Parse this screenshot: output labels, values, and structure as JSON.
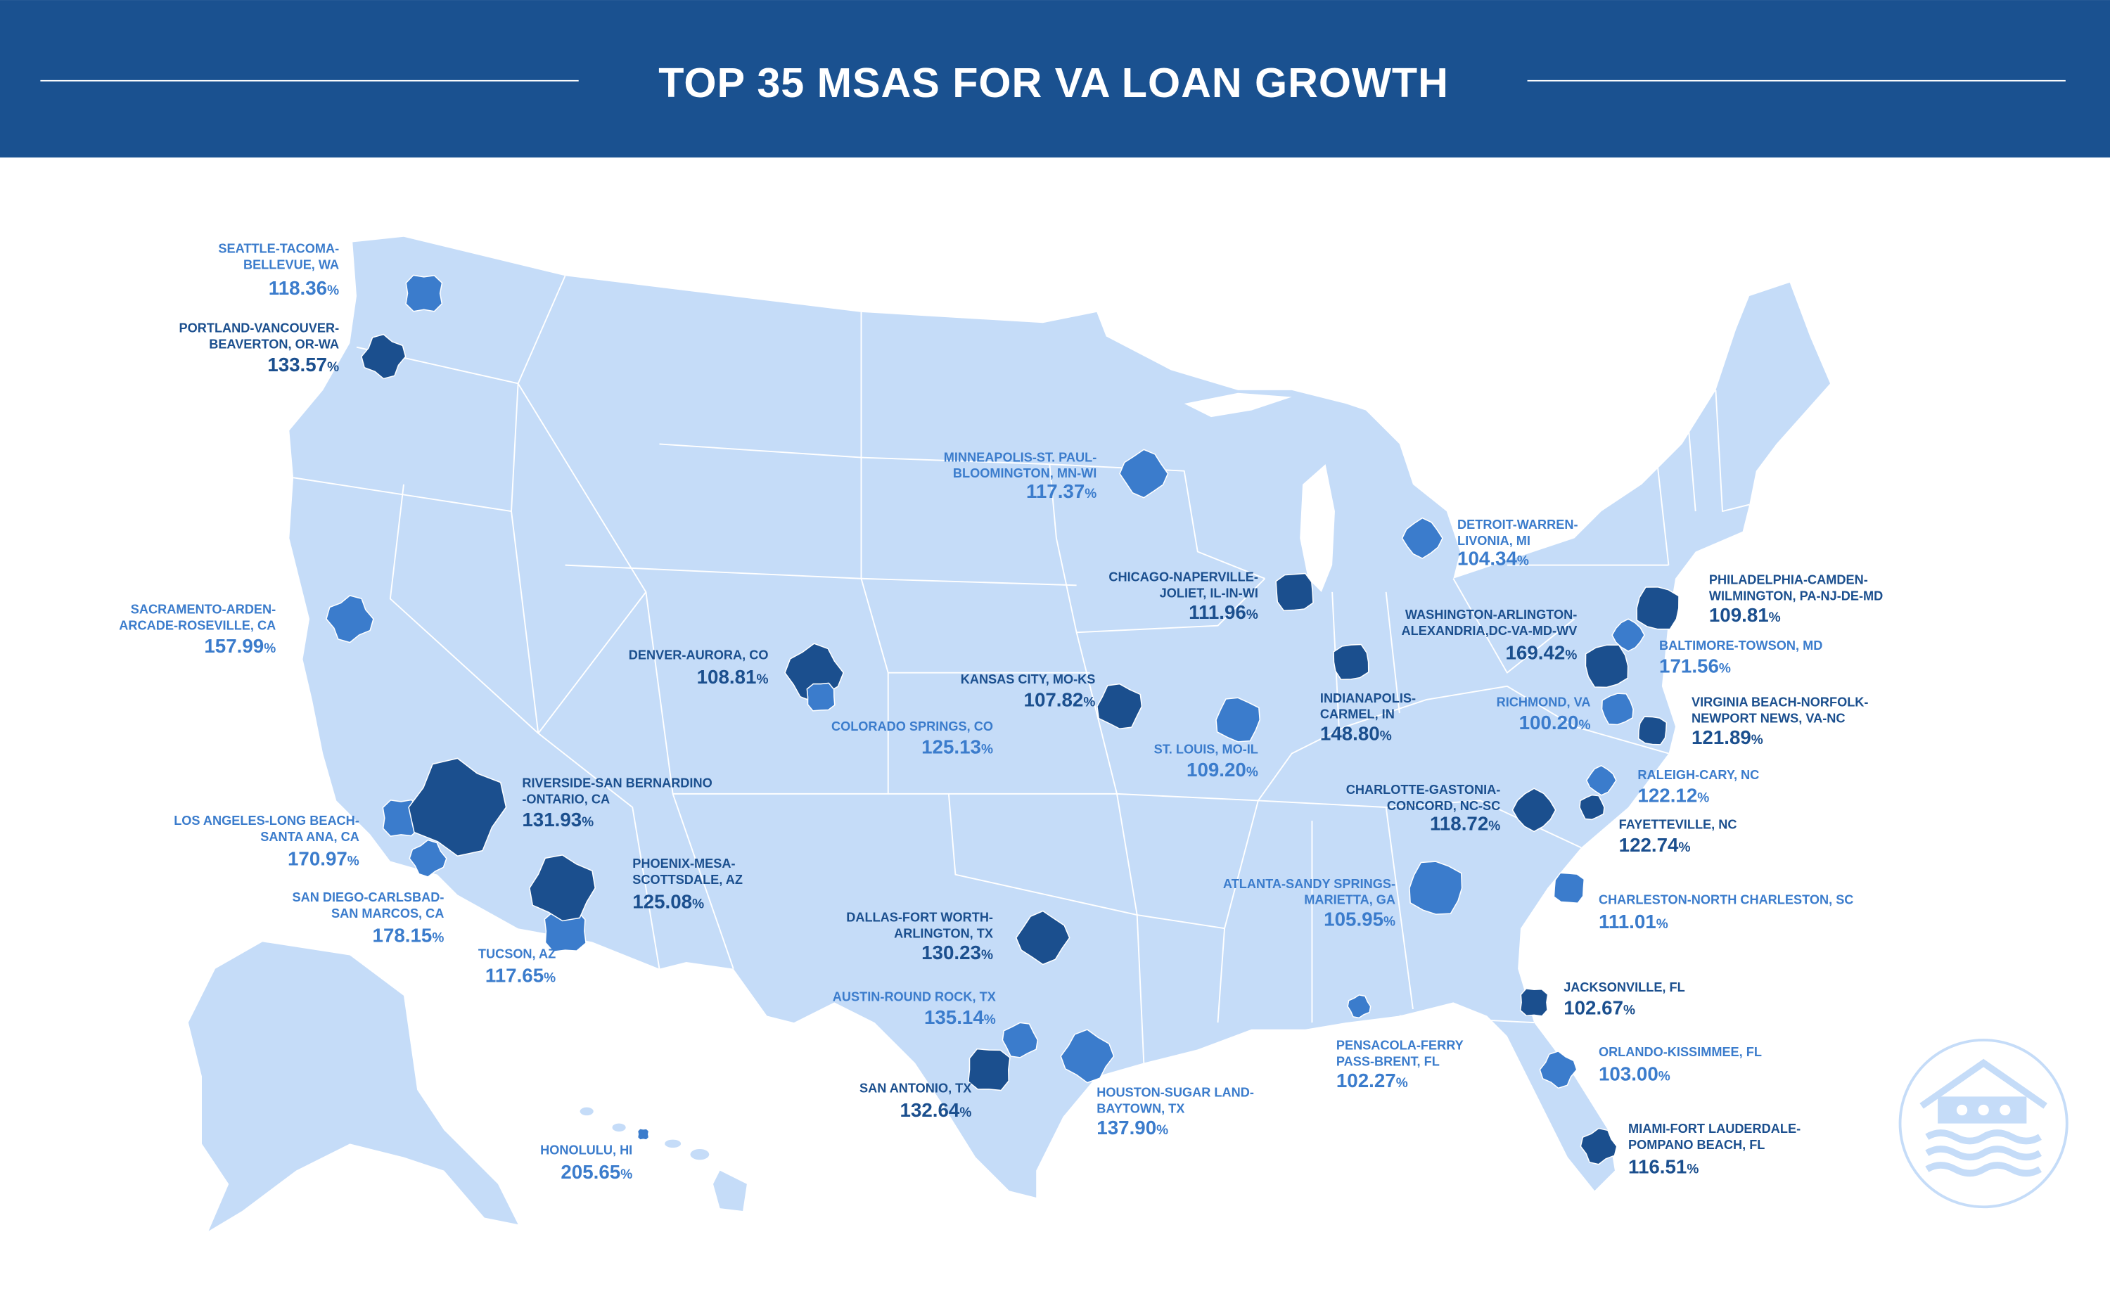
{
  "header": {
    "title": "TOP 35 MSAS FOR VA LOAN GROWTH"
  },
  "msas": [
    {
      "name_lines": [
        "SEATTLE-TACOMA-",
        "BELLEVUE, WA"
      ],
      "growth": "118.36%",
      "color": "#3b7ccc"
    },
    {
      "name_lines": [
        "PORTLAND-VANCOUVER-",
        "BEAVERTON, OR-WA"
      ],
      "growth": "133.57%",
      "color": "#1b4f8e"
    },
    {
      "name_lines": [
        "SACRAMENTO-ARDEN-",
        "ARCADE-ROSEVILLE, CA"
      ],
      "growth": "157.99%",
      "color": "#3b7ccc"
    },
    {
      "name_lines": [
        "LOS ANGELES-LONG BEACH-",
        "SANTA ANA, CA"
      ],
      "growth": "170.97%",
      "color": "#3b7ccc"
    },
    {
      "name_lines": [
        "RIVERSIDE-SAN BERNARDINO",
        "-ONTARIO, CA"
      ],
      "growth": "131.93%",
      "color": "#1b4f8e"
    },
    {
      "name_lines": [
        "SAN DIEGO-CARLSBAD-",
        "SAN MARCOS, CA"
      ],
      "growth": "178.15%",
      "color": "#3b7ccc"
    },
    {
      "name_lines": [
        "TUCSON, AZ"
      ],
      "growth": "117.65%",
      "color": "#3b7ccc"
    },
    {
      "name_lines": [
        "PHOENIX-MESA-",
        "SCOTTSDALE, AZ"
      ],
      "growth": "125.08%",
      "color": "#1b4f8e"
    },
    {
      "name_lines": [
        "DENVER-AURORA, CO"
      ],
      "growth": "108.81%",
      "color": "#1b4f8e"
    },
    {
      "name_lines": [
        "COLORADO SPRINGS, CO"
      ],
      "growth": "125.13%",
      "color": "#3b7ccc"
    },
    {
      "name_lines": [
        "KANSAS CITY, MO-KS"
      ],
      "growth": "107.82%",
      "color": "#1b4f8e"
    },
    {
      "name_lines": [
        "MINNEAPOLIS-ST. PAUL-",
        "BLOOMINGTON, MN-WI"
      ],
      "growth": "117.37%",
      "color": "#3b7ccc"
    },
    {
      "name_lines": [
        "CHICAGO-NAPERVILLE-",
        "JOLIET, IL-IN-WI"
      ],
      "growth": "111.96%",
      "color": "#1b4f8e"
    },
    {
      "name_lines": [
        "ST. LOUIS, MO-IL"
      ],
      "growth": "109.20%",
      "color": "#3b7ccc"
    },
    {
      "name_lines": [
        "DETROIT-WARREN-",
        "LIVONIA, MI"
      ],
      "growth": "104.34%",
      "color": "#3b7ccc"
    },
    {
      "name_lines": [
        "INDIANAPOLIS-",
        "CARMEL, IN"
      ],
      "growth": "148.80%",
      "color": "#1b4f8e"
    },
    {
      "name_lines": [
        "ATLANTA-SANDY SPRINGS-",
        "MARIETTA, GA"
      ],
      "growth": "105.95%",
      "color": "#3b7ccc"
    },
    {
      "name_lines": [
        "CHARLOTTE-GASTONIA-",
        "CONCORD, NC-SC"
      ],
      "growth": "118.72%",
      "color": "#1b4f8e"
    },
    {
      "name_lines": [
        "WASHINGTON-ARLINGTON-",
        "ALEXANDRIA,DC-VA-MD-WV"
      ],
      "growth": "169.42%",
      "color": "#1b4f8e"
    },
    {
      "name_lines": [
        "PHILADELPHIA-CAMDEN-",
        "WILMINGTON, PA-NJ-DE-MD"
      ],
      "growth": "109.81%",
      "color": "#1b4f8e"
    },
    {
      "name_lines": [
        "BALTIMORE-TOWSON, MD"
      ],
      "growth": "171.56%",
      "color": "#3b7ccc"
    },
    {
      "name_lines": [
        "RICHMOND, VA"
      ],
      "growth": "100.20%",
      "color": "#3b7ccc"
    },
    {
      "name_lines": [
        "VIRGINIA BEACH-NORFOLK-",
        "NEWPORT NEWS, VA-NC"
      ],
      "growth": "121.89%",
      "color": "#1b4f8e"
    },
    {
      "name_lines": [
        "RALEIGH-CARY, NC"
      ],
      "growth": "122.12%",
      "color": "#3b7ccc"
    },
    {
      "name_lines": [
        "FAYETTEVILLE, NC"
      ],
      "growth": "122.74%",
      "color": "#1b4f8e"
    },
    {
      "name_lines": [
        "CHARLESTON-NORTH CHARLESTON, SC"
      ],
      "growth": "111.01%",
      "color": "#3b7ccc"
    },
    {
      "name_lines": [
        "DALLAS-FORT WORTH-",
        "ARLINGTON, TX"
      ],
      "growth": "130.23%",
      "color": "#1b4f8e"
    },
    {
      "name_lines": [
        "AUSTIN-ROUND ROCK, TX"
      ],
      "growth": "135.14%",
      "color": "#3b7ccc"
    },
    {
      "name_lines": [
        "SAN ANTONIO, TX"
      ],
      "growth": "132.64%",
      "color": "#1b4f8e"
    },
    {
      "name_lines": [
        "HOUSTON-SUGAR LAND-",
        "BAYTOWN, TX"
      ],
      "growth": "137.90%",
      "color": "#3b7ccc"
    },
    {
      "name_lines": [
        "PENSACOLA-FERRY",
        "PASS-BRENT, FL"
      ],
      "growth": "102.27%",
      "color": "#3b7ccc"
    },
    {
      "name_lines": [
        "JACKSONVILLE, FL"
      ],
      "growth": "102.67%",
      "color": "#1b4f8e"
    },
    {
      "name_lines": [
        "ORLANDO-KISSIMMEE, FL"
      ],
      "growth": "103.00%",
      "color": "#3b7ccc"
    },
    {
      "name_lines": [
        "MIAMI-FORT LAUDERDALE-",
        "POMPANO BEACH, FL"
      ],
      "growth": "116.51%",
      "color": "#1b4f8e"
    },
    {
      "name_lines": [
        "HONOLULU, HI"
      ],
      "growth": "205.65%",
      "color": "#3b7ccc"
    }
  ]
}
